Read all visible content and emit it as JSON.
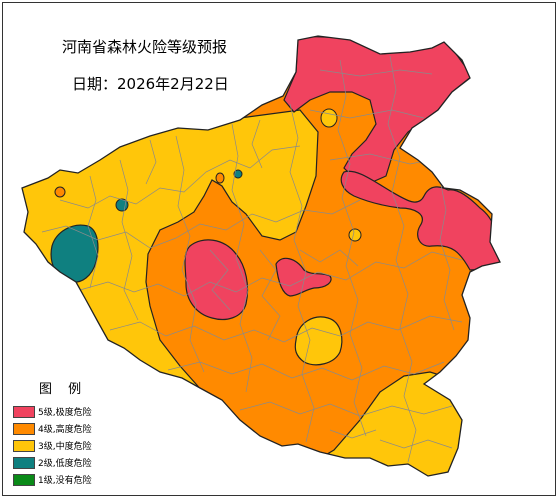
{
  "map": {
    "title": "河南省森林火险等级预报",
    "date_label": "日期：2026年2月22日"
  },
  "legend": {
    "title": "图 例",
    "items": [
      {
        "label": "5级,极度危险",
        "color": "#f0435f"
      },
      {
        "label": "4级,高度危险",
        "color": "#ff8a00"
      },
      {
        "label": "3级,中度危险",
        "color": "#ffc60a"
      },
      {
        "label": "2级,低度危险",
        "color": "#0f8080"
      },
      {
        "label": "1级,没有危险",
        "color": "#0a8a18"
      }
    ]
  },
  "colors": {
    "level5": "#f0435f",
    "level4": "#ff8a00",
    "level3": "#ffc60a",
    "level2": "#0f8080",
    "level1": "#0a8a18",
    "county_border": "#8a8a8a",
    "outline": "#222222"
  }
}
